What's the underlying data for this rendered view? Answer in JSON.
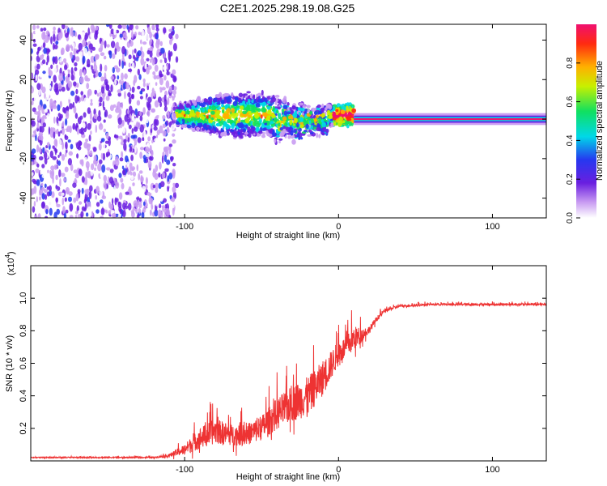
{
  "title": "C2E1.2025.298.19.08.G25",
  "chart_data": [
    {
      "type": "heatmap",
      "xlabel": "Height of straight line (km)",
      "ylabel": "Frequency (Hz)",
      "xlim": [
        -200,
        135
      ],
      "ylim": [
        -50,
        48
      ],
      "xticks": [
        -100,
        0,
        100
      ],
      "yticks": [
        -40,
        -20,
        0,
        20,
        40
      ],
      "colorbar": {
        "label": "Normalized spectral amplitude",
        "range": [
          0,
          1
        ],
        "ticks": [
          0.0,
          0.2,
          0.4,
          0.6,
          0.8
        ]
      },
      "regions": [
        {
          "name": "noise",
          "x_range": [
            -200,
            -105
          ],
          "freq_range": [
            -50,
            48
          ],
          "amplitude": 0.2
        },
        {
          "name": "transition",
          "x_range": [
            -105,
            10
          ],
          "center_freq_hz": 2,
          "spread_hz": 22,
          "amplitude": 0.4
        },
        {
          "name": "carrier",
          "x_range": [
            10,
            135
          ],
          "center_freq_hz": 0,
          "spread_hz": 3,
          "amplitude": 1.0
        }
      ]
    },
    {
      "type": "line",
      "xlabel": "Height of straight line (km)",
      "ylabel": "SNR (10 * v/v)",
      "yscale_label": "(x10",
      "yscale_exp": "4",
      "yscale_close": ")",
      "xlim": [
        -200,
        135
      ],
      "ylim": [
        0,
        1.2
      ],
      "xticks": [
        -100,
        0,
        100
      ],
      "yticks": [
        0.2,
        0.4,
        0.6,
        0.8,
        1.0
      ],
      "series": [
        {
          "name": "SNR",
          "color": "#ee3333",
          "x": [
            -200,
            -120,
            -110,
            -100,
            -90,
            -80,
            -70,
            -60,
            -50,
            -40,
            -30,
            -20,
            -15,
            -10,
            -5,
            0,
            5,
            10,
            15,
            20,
            25,
            30,
            40,
            60,
            80,
            100,
            120,
            135
          ],
          "y": [
            0.02,
            0.02,
            0.03,
            0.06,
            0.12,
            0.16,
            0.14,
            0.14,
            0.18,
            0.26,
            0.32,
            0.36,
            0.42,
            0.48,
            0.56,
            0.64,
            0.68,
            0.73,
            0.76,
            0.8,
            0.87,
            0.92,
            0.95,
            0.96,
            0.96,
            0.96,
            0.96,
            0.96
          ],
          "noise": [
            0.005,
            0.008,
            0.02,
            0.06,
            0.12,
            0.14,
            0.12,
            0.12,
            0.14,
            0.18,
            0.2,
            0.22,
            0.2,
            0.2,
            0.16,
            0.14,
            0.12,
            0.14,
            0.08,
            0.04,
            0.03,
            0.02,
            0.015,
            0.012,
            0.012,
            0.012,
            0.012,
            0.012
          ]
        }
      ]
    }
  ]
}
